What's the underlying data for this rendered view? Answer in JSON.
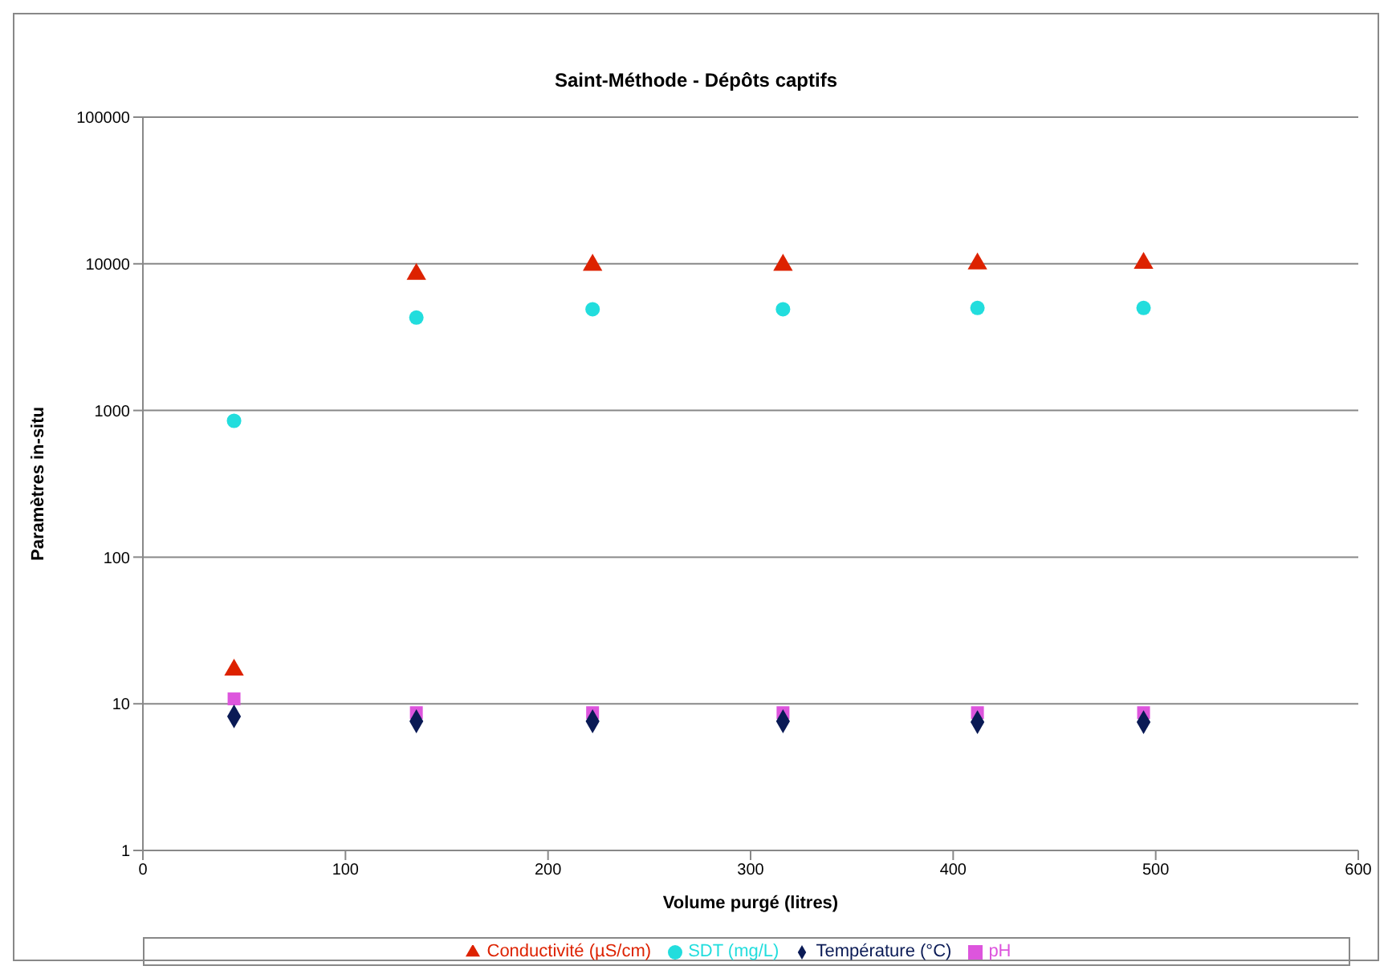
{
  "chart_data": {
    "type": "scatter",
    "title": "Saint-Méthode - Dépôts captifs",
    "xlabel": "Volume purgé (litres)",
    "ylabel": "Paramètres in-situ",
    "x": [
      45,
      135,
      222,
      316,
      412,
      494
    ],
    "log": "y",
    "xlim": [
      0,
      600
    ],
    "xticks": [
      0,
      100,
      200,
      300,
      400,
      500,
      600
    ],
    "ylim": [
      1,
      100000
    ],
    "yticks": [
      1,
      10,
      100,
      1000,
      10000,
      100000
    ],
    "grid": "y",
    "legend": "bottom",
    "series": [
      {
        "name": "Conductivité (µS/cm)",
        "color": "#dd2200",
        "marker": "triangle",
        "values": [
          17,
          8500,
          9800,
          9800,
          10000,
          10100
        ]
      },
      {
        "name": "SDT (mg/L)",
        "color": "#22dddd",
        "marker": "circle",
        "values": [
          850,
          4300,
          4900,
          4900,
          5000,
          5000
        ]
      },
      {
        "name": "pH",
        "color": "#dd55dd",
        "marker": "square",
        "values": [
          10.8,
          8.7,
          8.7,
          8.7,
          8.7,
          8.7
        ]
      },
      {
        "name": "Température (°C)",
        "color": "#0a1a55",
        "marker": "diamond",
        "values": [
          8.2,
          7.6,
          7.6,
          7.6,
          7.5,
          7.5
        ]
      }
    ]
  }
}
